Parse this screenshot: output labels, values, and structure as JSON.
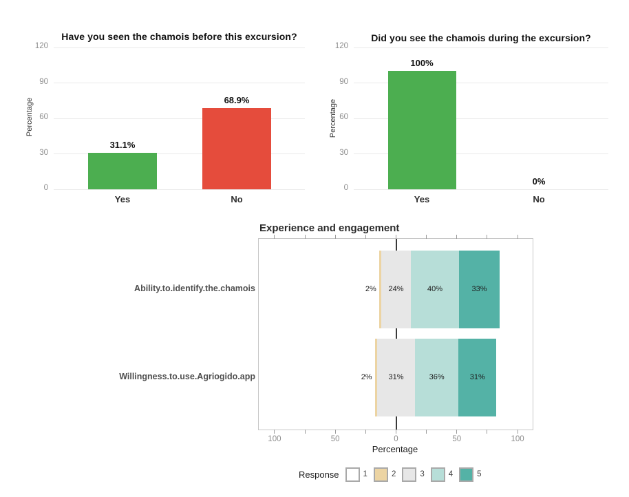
{
  "chart_data": [
    {
      "type": "bar",
      "title": "Have you seen the chamois before this excursion?",
      "ylabel": "Percentage",
      "categories": [
        "Yes",
        "No"
      ],
      "values": [
        31.1,
        68.9
      ],
      "value_labels": [
        "31.1%",
        "68.9%"
      ],
      "bar_colors": [
        "#4CAE50",
        "#E54C3C"
      ],
      "yticks": [
        0,
        30,
        60,
        90,
        120
      ],
      "ylim": [
        0,
        120
      ],
      "grid": "horizontal",
      "legend_position": "none"
    },
    {
      "type": "bar",
      "title": "Did you see the chamois during the excursion?",
      "ylabel": "Percentage",
      "categories": [
        "Yes",
        "No"
      ],
      "values": [
        100,
        0
      ],
      "value_labels": [
        "100%",
        "0%"
      ],
      "bar_colors": [
        "#4CAE50",
        "#4CAE50"
      ],
      "yticks": [
        0,
        30,
        60,
        90,
        120
      ],
      "ylim": [
        0,
        120
      ],
      "grid": "horizontal",
      "legend_position": "none"
    },
    {
      "type": "diverging-stacked-bar",
      "title": "Experience and engagement",
      "xlabel": "Percentage",
      "xtick_values": [
        -100,
        -50,
        0,
        50,
        100
      ],
      "xtick_labels": [
        "100",
        "50",
        "0",
        "50",
        "100"
      ],
      "minor_tick_step": 25,
      "xlim": [
        -113,
        113
      ],
      "center_level": "3",
      "rows": [
        {
          "label": "Ability.to.identify.the.chamois",
          "segments": [
            {
              "level": "2",
              "value": 2,
              "text": "2%"
            },
            {
              "level": "3",
              "value": 24,
              "text": "24%"
            },
            {
              "level": "4",
              "value": 40,
              "text": "40%"
            },
            {
              "level": "5",
              "value": 33,
              "text": "33%"
            }
          ]
        },
        {
          "label": "Willingness.to.use.Agriogido.app",
          "segments": [
            {
              "level": "2",
              "value": 2,
              "text": "2%"
            },
            {
              "level": "3",
              "value": 31,
              "text": "31%"
            },
            {
              "level": "4",
              "value": 36,
              "text": "36%"
            },
            {
              "level": "5",
              "value": 31,
              "text": "31%"
            }
          ]
        }
      ],
      "legend": {
        "title": "Response",
        "items": [
          {
            "label": "1",
            "color": "#FFFFFF"
          },
          {
            "label": "2",
            "color": "#ECD4A3"
          },
          {
            "label": "3",
            "color": "#E7E7E7"
          },
          {
            "label": "4",
            "color": "#B7DED8"
          },
          {
            "label": "5",
            "color": "#54B2A6"
          }
        ]
      },
      "legend_position": "bottom"
    }
  ]
}
